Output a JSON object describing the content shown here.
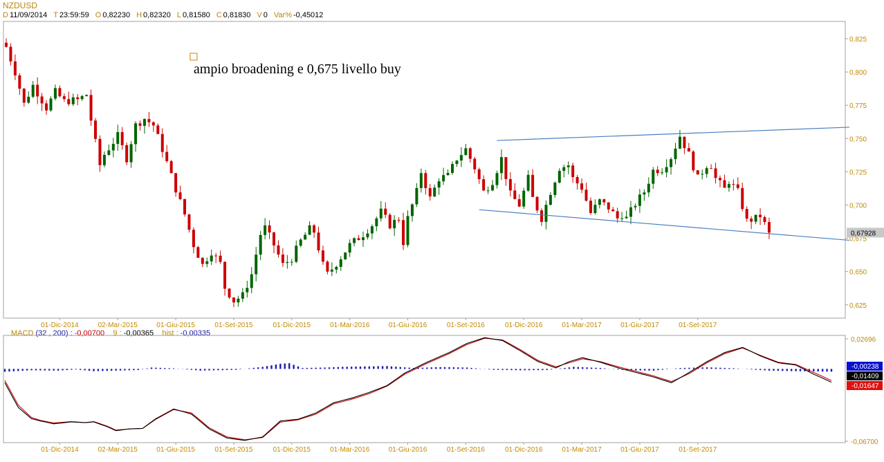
{
  "symbol": "NZDUSD",
  "ohlc_bar": [
    {
      "key": "D",
      "value": "11/09/2014"
    },
    {
      "key": "T",
      "value": "23:59:59"
    },
    {
      "key": "O",
      "value": "0,82230"
    },
    {
      "key": "H",
      "value": "0,82320"
    },
    {
      "key": "L",
      "value": "0,81580"
    },
    {
      "key": "C",
      "value": "0,81830"
    },
    {
      "key": "V",
      "value": "0"
    },
    {
      "key": "Var%",
      "value": "-0,45012"
    }
  ],
  "macd_header": {
    "label": "MACD",
    "params": "(32 , 200) :",
    "macd_value": "-0,00700",
    "signal_label": "9 :",
    "signal_value": "-0,00365",
    "hist_label": "hist :",
    "hist_value": "-0,00335"
  },
  "colors": {
    "accent": "#c08a00",
    "up_candle": "#006400",
    "down_candle": "#cc0000",
    "trendline": "#4a7fc0",
    "macd_line": "#000000",
    "signal_line": "#cc0000",
    "histogram": "#1a1ab0"
  },
  "chart_data": [
    {
      "type": "candlestick",
      "title": "NZDUSD",
      "annotation": "ampio broadening e 0,675 livello buy",
      "ylim": [
        0.615,
        0.838
      ],
      "yticks": [
        "0,825",
        "0,800",
        "0,775",
        "0,750",
        "0,725",
        "0,700",
        "0,675",
        "0,650",
        "0,625"
      ],
      "ytick_values": [
        0.825,
        0.8,
        0.775,
        0.75,
        0.725,
        0.7,
        0.675,
        0.65,
        0.625
      ],
      "last_price_label": "0,67928",
      "last_price": 0.67928,
      "xticks": [
        "01-Dic-2014",
        "02-Mar-2015",
        "01-Giu-2015",
        "01-Set-2015",
        "01-Dic-2015",
        "01-Mar-2016",
        "01-Giu-2016",
        "01-Set-2016",
        "01-Dic-2016",
        "01-Mar-2017",
        "01-Giu-2017",
        "01-Set-2017"
      ],
      "xtick_weeks": [
        12,
        25,
        38,
        51,
        64,
        77,
        90,
        103,
        116,
        129,
        142,
        155
      ],
      "total_weeks": 172,
      "close_path": [
        [
          0,
          0.819
        ],
        [
          2,
          0.8
        ],
        [
          4,
          0.776
        ],
        [
          6,
          0.79
        ],
        [
          9,
          0.773
        ],
        [
          11,
          0.785
        ],
        [
          13,
          0.778
        ],
        [
          16,
          0.779
        ],
        [
          18,
          0.783
        ],
        [
          19,
          0.764
        ],
        [
          21,
          0.73
        ],
        [
          22,
          0.738
        ],
        [
          25,
          0.752
        ],
        [
          27,
          0.735
        ],
        [
          29,
          0.76
        ],
        [
          31,
          0.765
        ],
        [
          33,
          0.76
        ],
        [
          35,
          0.742
        ],
        [
          38,
          0.712
        ],
        [
          40,
          0.693
        ],
        [
          42,
          0.67
        ],
        [
          44,
          0.655
        ],
        [
          46,
          0.665
        ],
        [
          48,
          0.656
        ],
        [
          49,
          0.638
        ],
        [
          51,
          0.628
        ],
        [
          53,
          0.632
        ],
        [
          55,
          0.648
        ],
        [
          57,
          0.678
        ],
        [
          58,
          0.683
        ],
        [
          60,
          0.67
        ],
        [
          62,
          0.655
        ],
        [
          64,
          0.66
        ],
        [
          66,
          0.673
        ],
        [
          68,
          0.682
        ],
        [
          69,
          0.68
        ],
        [
          71,
          0.655
        ],
        [
          72,
          0.648
        ],
        [
          74,
          0.656
        ],
        [
          77,
          0.67
        ],
        [
          80,
          0.678
        ],
        [
          82,
          0.685
        ],
        [
          84,
          0.695
        ],
        [
          86,
          0.685
        ],
        [
          88,
          0.69
        ],
        [
          89,
          0.672
        ],
        [
          90,
          0.69
        ],
        [
          92,
          0.71
        ],
        [
          93,
          0.725
        ],
        [
          95,
          0.705
        ],
        [
          97,
          0.72
        ],
        [
          99,
          0.722
        ],
        [
          101,
          0.735
        ],
        [
          103,
          0.742
        ],
        [
          105,
          0.728
        ],
        [
          107,
          0.71
        ],
        [
          109,
          0.718
        ],
        [
          111,
          0.735
        ],
        [
          113,
          0.708
        ],
        [
          115,
          0.7
        ],
        [
          117,
          0.72
        ],
        [
          118,
          0.705
        ],
        [
          120,
          0.69
        ],
        [
          122,
          0.71
        ],
        [
          124,
          0.728
        ],
        [
          126,
          0.73
        ],
        [
          127,
          0.72
        ],
        [
          129,
          0.713
        ],
        [
          131,
          0.694
        ],
        [
          133,
          0.703
        ],
        [
          135,
          0.698
        ],
        [
          137,
          0.69
        ],
        [
          138,
          0.693
        ],
        [
          139,
          0.69
        ],
        [
          141,
          0.701
        ],
        [
          143,
          0.71
        ],
        [
          145,
          0.726
        ],
        [
          147,
          0.727
        ],
        [
          149,
          0.736
        ],
        [
          151,
          0.752
        ],
        [
          153,
          0.738
        ],
        [
          155,
          0.72
        ],
        [
          157,
          0.73
        ],
        [
          158,
          0.73
        ],
        [
          159,
          0.72
        ],
        [
          161,
          0.712
        ],
        [
          162,
          0.718
        ],
        [
          164,
          0.71
        ],
        [
          166,
          0.688
        ],
        [
          168,
          0.69
        ],
        [
          169,
          0.692
        ],
        [
          171,
          0.6793
        ]
      ],
      "trendlines": [
        {
          "name": "upper",
          "from": [
            110,
            0.7485
          ],
          "to": [
            189,
            0.7585
          ]
        },
        {
          "name": "lower",
          "from": [
            106,
            0.6965
          ],
          "to": [
            189,
            0.6735
          ]
        }
      ],
      "annotation_marker_week": 42,
      "annotation_marker_price": 0.8115
    },
    {
      "type": "line",
      "title": "MACD (32 , 200)",
      "ylim": [
        -0.067,
        0.02696
      ],
      "yticks": [
        "0,02696",
        "-0,06700"
      ],
      "ytick_values": [
        0.02696,
        -0.067
      ],
      "value_badges": [
        {
          "label": "-0,00238",
          "color": "#0a10d0"
        },
        {
          "label": "-0,01409",
          "color": "#000000"
        },
        {
          "label": "-0,01647",
          "color": "#e01010"
        }
      ],
      "series": [
        {
          "role": "macd",
          "values": [
            [
              0,
              -0.0145
            ],
            [
              3,
              -0.036
            ],
            [
              6,
              -0.046
            ],
            [
              8,
              -0.048
            ],
            [
              11,
              -0.0505
            ],
            [
              15,
              -0.0488
            ],
            [
              18,
              -0.0495
            ],
            [
              20,
              -0.0488
            ],
            [
              23,
              -0.053
            ],
            [
              25,
              -0.0565
            ],
            [
              28,
              -0.055
            ],
            [
              31,
              -0.0545
            ],
            [
              34,
              -0.046
            ],
            [
              38,
              -0.0375
            ],
            [
              42,
              -0.042
            ],
            [
              46,
              -0.055
            ],
            [
              50,
              -0.063
            ],
            [
              54,
              -0.065
            ],
            [
              58,
              -0.062
            ],
            [
              62,
              -0.048
            ],
            [
              66,
              -0.0465
            ],
            [
              70,
              -0.041
            ],
            [
              74,
              -0.032
            ],
            [
              78,
              -0.028
            ],
            [
              82,
              -0.023
            ],
            [
              86,
              -0.017
            ],
            [
              90,
              -0.006
            ],
            [
              95,
              0.0035
            ],
            [
              100,
              0.012
            ],
            [
              104,
              0.02
            ],
            [
              108,
              0.025
            ],
            [
              112,
              0.0225
            ],
            [
              116,
              0.0135
            ],
            [
              120,
              0.004
            ],
            [
              124,
              -0.0015
            ],
            [
              127,
              0.004
            ],
            [
              130,
              0.0075
            ],
            [
              134,
              0.0035
            ],
            [
              138,
              -0.0015
            ],
            [
              142,
              -0.0055
            ],
            [
              146,
              -0.0095
            ],
            [
              150,
              -0.0145
            ],
            [
              154,
              -0.0055
            ],
            [
              158,
              0.004
            ],
            [
              162,
              0.012
            ],
            [
              166,
              0.0165
            ],
            [
              170,
              0.009
            ],
            [
              174,
              0.003
            ],
            [
              178,
              0.001
            ],
            [
              182,
              -0.007
            ],
            [
              186,
              -0.014
            ]
          ]
        },
        {
          "role": "signal",
          "values": [
            [
              0,
              -0.0125
            ],
            [
              3,
              -0.034
            ],
            [
              6,
              -0.045
            ],
            [
              8,
              -0.0475
            ],
            [
              11,
              -0.0498
            ],
            [
              15,
              -0.0485
            ],
            [
              18,
              -0.0495
            ],
            [
              20,
              -0.0485
            ],
            [
              23,
              -0.0525
            ],
            [
              25,
              -0.056
            ],
            [
              28,
              -0.055
            ],
            [
              31,
              -0.0545
            ],
            [
              34,
              -0.0465
            ],
            [
              38,
              -0.038
            ],
            [
              42,
              -0.041
            ],
            [
              46,
              -0.054
            ],
            [
              50,
              -0.062
            ],
            [
              54,
              -0.0645
            ],
            [
              58,
              -0.0625
            ],
            [
              62,
              -0.049
            ],
            [
              66,
              -0.047
            ],
            [
              70,
              -0.042
            ],
            [
              74,
              -0.033
            ],
            [
              78,
              -0.029
            ],
            [
              82,
              -0.024
            ],
            [
              86,
              -0.0175
            ],
            [
              90,
              -0.007
            ],
            [
              95,
              0.0025
            ],
            [
              100,
              0.011
            ],
            [
              104,
              0.019
            ],
            [
              108,
              0.0245
            ],
            [
              112,
              0.023
            ],
            [
              116,
              0.0145
            ],
            [
              120,
              0.005
            ],
            [
              124,
              -0.0005
            ],
            [
              127,
              0.003
            ],
            [
              130,
              0.0065
            ],
            [
              134,
              0.004
            ],
            [
              138,
              -0.0005
            ],
            [
              142,
              -0.0045
            ],
            [
              146,
              -0.0085
            ],
            [
              150,
              -0.0135
            ],
            [
              154,
              -0.0065
            ],
            [
              158,
              0.003
            ],
            [
              162,
              0.011
            ],
            [
              166,
              0.016
            ],
            [
              170,
              0.0095
            ],
            [
              174,
              0.0035
            ],
            [
              178,
              0.0015
            ],
            [
              182,
              -0.0055
            ],
            [
              186,
              -0.0125
            ]
          ]
        },
        {
          "role": "histogram",
          "values": [
            [
              0,
              -0.0025
            ],
            [
              6,
              -0.0012
            ],
            [
              12,
              -0.0015
            ],
            [
              16,
              -0.0005
            ],
            [
              20,
              -0.002
            ],
            [
              30,
              -0.001
            ],
            [
              33,
              0.0012
            ],
            [
              38,
              0.0005
            ],
            [
              44,
              -0.0015
            ],
            [
              52,
              -0.0008
            ],
            [
              58,
              0.0018
            ],
            [
              62,
              0.0045
            ],
            [
              64,
              0.005
            ],
            [
              67,
              0.0008
            ],
            [
              72,
              0.0012
            ],
            [
              76,
              0.0018
            ],
            [
              86,
              0.0025
            ],
            [
              92,
              0.0008
            ],
            [
              98,
              0.0016
            ],
            [
              104,
              0.0012
            ],
            [
              110,
              -0.0008
            ],
            [
              116,
              -0.0012
            ],
            [
              122,
              -0.001
            ],
            [
              128,
              0.0018
            ],
            [
              134,
              0.0008
            ],
            [
              140,
              -0.0012
            ],
            [
              146,
              -0.0015
            ],
            [
              152,
              0.0008
            ],
            [
              158,
              0.0014
            ],
            [
              164,
              0.0006
            ],
            [
              168,
              -0.0005
            ],
            [
              172,
              -0.0015
            ],
            [
              178,
              -0.002
            ],
            [
              186,
              -0.0024
            ]
          ]
        }
      ],
      "xticks": [
        "01-Dic-2014",
        "02-Mar-2015",
        "01-Giu-2015",
        "01-Set-2015",
        "01-Dic-2015",
        "01-Mar-2016",
        "01-Giu-2016",
        "01-Set-2016",
        "01-Dic-2016",
        "01-Mar-2017",
        "01-Giu-2017",
        "01-Set-2017"
      ],
      "total_points": 187
    }
  ]
}
